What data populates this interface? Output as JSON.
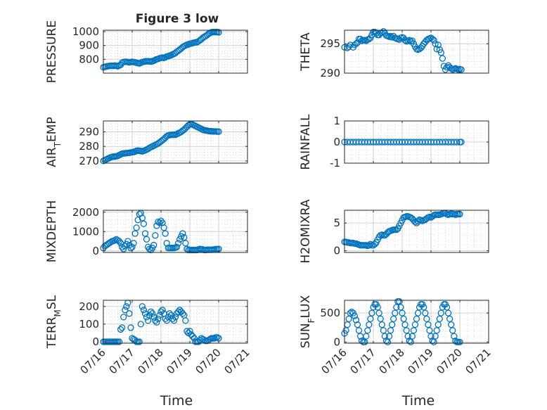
{
  "figure": {
    "title": "Figure 3 low",
    "xlabel": "Time"
  },
  "x_ticks": [
    "07/16",
    "07/17",
    "07/18",
    "07/19",
    "07/20",
    "07/21"
  ],
  "colors": {
    "marker": "#0072BD",
    "axis": "#262626",
    "grid": "#d0d0d0"
  },
  "chart_data": [
    {
      "type": "scatter",
      "ylabel": "PRESSURE",
      "ylabel_sub": "",
      "ylim": [
        700,
        1010
      ],
      "yticks": [
        800,
        900,
        1000
      ],
      "x": [
        0,
        0.05,
        0.1,
        0.15,
        0.2,
        0.25,
        0.3,
        0.35,
        0.4,
        0.45,
        0.5,
        0.55,
        0.6,
        0.65,
        0.7,
        0.75,
        0.8,
        0.85,
        0.9,
        0.95,
        1.0,
        1.05,
        1.1,
        1.15,
        1.2,
        1.25,
        1.3,
        1.35,
        1.4,
        1.45,
        1.5,
        1.55,
        1.6,
        1.65,
        1.7,
        1.75,
        1.8,
        1.85,
        1.9,
        1.95,
        2.0,
        2.05,
        2.1,
        2.15,
        2.2,
        2.25,
        2.3,
        2.35,
        2.4,
        2.45,
        2.5,
        2.55,
        2.6,
        2.65,
        2.7,
        2.75,
        2.8,
        2.85,
        2.9,
        2.95,
        3.0,
        3.05,
        3.1,
        3.15,
        3.2,
        3.25,
        3.3,
        3.35,
        3.4,
        3.45,
        3.5,
        3.55,
        3.6,
        3.65,
        3.7,
        3.75,
        3.8,
        3.85,
        3.9,
        3.95,
        4.0
      ],
      "y": [
        742,
        745,
        748,
        750,
        752,
        753,
        753,
        752,
        755,
        752,
        750,
        755,
        760,
        775,
        780,
        782,
        782,
        780,
        778,
        780,
        782,
        780,
        778,
        775,
        772,
        770,
        775,
        780,
        782,
        785,
        786,
        785,
        786,
        784,
        786,
        790,
        795,
        800,
        803,
        808,
        810,
        812,
        810,
        814,
        820,
        823,
        826,
        830,
        835,
        840,
        845,
        855,
        862,
        870,
        878,
        888,
        895,
        900,
        905,
        908,
        912,
        914,
        918,
        920,
        922,
        924,
        930,
        938,
        945,
        955,
        962,
        968,
        975,
        985,
        990,
        995,
        997,
        997,
        997,
        997,
        995
      ]
    },
    {
      "type": "scatter",
      "ylabel": "THETA",
      "ylabel_sub": "",
      "ylim": [
        290,
        297.3
      ],
      "yticks": [
        290,
        295
      ],
      "x": [
        0,
        0.1,
        0.15,
        0.2,
        0.3,
        0.35,
        0.4,
        0.45,
        0.5,
        0.55,
        0.6,
        0.65,
        0.7,
        0.75,
        0.8,
        0.85,
        0.9,
        0.95,
        1.0,
        1.05,
        1.1,
        1.15,
        1.2,
        1.25,
        1.3,
        1.35,
        1.4,
        1.45,
        1.5,
        1.55,
        1.6,
        1.65,
        1.7,
        1.75,
        1.8,
        1.85,
        1.9,
        1.95,
        2.0,
        2.05,
        2.1,
        2.15,
        2.2,
        2.25,
        2.3,
        2.35,
        2.4,
        2.45,
        2.5,
        2.55,
        2.6,
        2.65,
        2.7,
        2.75,
        2.8,
        2.85,
        2.9,
        2.95,
        3.0,
        3.05,
        3.1,
        3.15,
        3.2,
        3.25,
        3.3,
        3.35,
        3.4,
        3.45,
        3.5,
        3.55,
        3.6,
        3.65,
        3.7,
        3.75,
        3.8,
        3.85,
        3.9,
        3.95,
        4.0,
        4.05
      ],
      "y": [
        294.4,
        294.3,
        294.5,
        294.8,
        294.4,
        294.8,
        295.0,
        295.2,
        295.8,
        295.8,
        295.5,
        295.6,
        295.6,
        295.5,
        295.7,
        295.8,
        296.0,
        296.5,
        297.0,
        297.0,
        296.8,
        296.5,
        296.5,
        296.8,
        296.9,
        297.1,
        296.8,
        296.4,
        296.3,
        296.2,
        296.3,
        296.1,
        296.3,
        296.0,
        295.9,
        295.8,
        295.7,
        296.0,
        296.1,
        296.0,
        295.6,
        295.4,
        295.5,
        295.6,
        295.4,
        295.5,
        295.0,
        294.5,
        294.1,
        294.0,
        294.1,
        294.3,
        294.6,
        295.0,
        295.3,
        295.6,
        295.8,
        295.9,
        296.0,
        295.8,
        295.6,
        295.0,
        294.1,
        294.8,
        294.0,
        293.5,
        292.5,
        291.2,
        290.6,
        291.0,
        291.3,
        291.0,
        290.8,
        290.6,
        290.7,
        290.8,
        290.7,
        290.6,
        290.7,
        290.6
      ]
    },
    {
      "type": "scatter",
      "ylabel": "AIR",
      "ylabel_sub": "T",
      "ylabel_rest": "EMP",
      "ylim": [
        268.5,
        297.5
      ],
      "yticks": [
        270,
        280,
        290
      ],
      "x": [
        0,
        0.05,
        0.1,
        0.15,
        0.2,
        0.25,
        0.3,
        0.35,
        0.4,
        0.45,
        0.5,
        0.55,
        0.6,
        0.65,
        0.7,
        0.75,
        0.8,
        0.85,
        0.9,
        0.95,
        1.0,
        1.05,
        1.1,
        1.15,
        1.2,
        1.25,
        1.3,
        1.35,
        1.4,
        1.45,
        1.5,
        1.55,
        1.6,
        1.65,
        1.7,
        1.75,
        1.8,
        1.85,
        1.9,
        1.95,
        2.0,
        2.05,
        2.1,
        2.15,
        2.2,
        2.25,
        2.3,
        2.35,
        2.4,
        2.45,
        2.5,
        2.55,
        2.6,
        2.65,
        2.7,
        2.75,
        2.8,
        2.85,
        2.9,
        2.95,
        3.0,
        3.05,
        3.1,
        3.15,
        3.2,
        3.25,
        3.3,
        3.35,
        3.4,
        3.45,
        3.5,
        3.55,
        3.6,
        3.65,
        3.7,
        3.75,
        3.8,
        3.85,
        3.9,
        3.95,
        4.0
      ],
      "y": [
        270,
        270.5,
        271,
        271.5,
        272,
        272.5,
        272.8,
        273,
        273,
        273.2,
        273.5,
        274,
        274.5,
        275,
        275.2,
        275.3,
        275.4,
        275.5,
        275.6,
        275.8,
        276,
        276.2,
        276.5,
        277,
        277.2,
        277,
        276.8,
        276.6,
        277,
        277.3,
        277.8,
        278.3,
        279,
        279.5,
        280,
        280.5,
        281,
        281.5,
        282,
        282.8,
        283.5,
        284.3,
        285,
        286,
        287,
        287.6,
        287.8,
        287.9,
        288,
        288,
        288.1,
        288.5,
        289,
        289.5,
        290,
        290.8,
        291.5,
        292.5,
        293.5,
        294.5,
        295.2,
        295.5,
        295.0,
        294.5,
        294.0,
        293.5,
        293.0,
        292.5,
        292.0,
        291.5,
        291.2,
        291,
        290.8,
        290.6,
        290.5,
        290.4,
        290.3,
        290.3,
        290.3,
        290.2,
        290.2
      ]
    },
    {
      "type": "scatter",
      "ylabel": "RAINFALL",
      "ylabel_sub": "",
      "ylim": [
        -1,
        1
      ],
      "yticks": [
        -1,
        0,
        1
      ],
      "x": [
        0,
        0.1,
        0.2,
        0.3,
        0.4,
        0.5,
        0.6,
        0.7,
        0.8,
        0.9,
        1.0,
        1.1,
        1.2,
        1.3,
        1.4,
        1.5,
        1.6,
        1.7,
        1.8,
        1.9,
        2.0,
        2.1,
        2.2,
        2.3,
        2.4,
        2.5,
        2.6,
        2.7,
        2.8,
        2.9,
        3.0,
        3.1,
        3.2,
        3.3,
        3.4,
        3.5,
        3.6,
        3.7,
        3.8,
        3.9,
        4.0,
        4.05
      ],
      "y": [
        0,
        0,
        0,
        0,
        0,
        0,
        0,
        0,
        0,
        0,
        0,
        0,
        0,
        0,
        0,
        0,
        0,
        0,
        0,
        0,
        0,
        0,
        0,
        0,
        0,
        0,
        0,
        0,
        0,
        0,
        0,
        0,
        0,
        0,
        0,
        0,
        0,
        0,
        0,
        0,
        0,
        0
      ]
    },
    {
      "type": "scatter",
      "ylabel": "MIXDEPTH",
      "ylabel_sub": "",
      "ylim": [
        -80,
        2100
      ],
      "yticks": [
        0,
        1000,
        2000
      ],
      "x": [
        0,
        0.05,
        0.1,
        0.15,
        0.2,
        0.25,
        0.3,
        0.35,
        0.4,
        0.45,
        0.5,
        0.55,
        0.6,
        0.65,
        0.7,
        0.75,
        0.8,
        0.85,
        0.9,
        0.95,
        1.0,
        1.05,
        1.1,
        1.15,
        1.2,
        1.25,
        1.3,
        1.35,
        1.4,
        1.45,
        1.5,
        1.55,
        1.6,
        1.65,
        1.7,
        1.75,
        1.8,
        1.85,
        1.9,
        1.95,
        2.0,
        2.05,
        2.1,
        2.15,
        2.2,
        2.25,
        2.3,
        2.35,
        2.4,
        2.45,
        2.5,
        2.55,
        2.6,
        2.65,
        2.7,
        2.75,
        2.8,
        2.85,
        2.9,
        2.95,
        3.0,
        3.05,
        3.1,
        3.15,
        3.2,
        3.25,
        3.3,
        3.35,
        3.4,
        3.45,
        3.5,
        3.55,
        3.6,
        3.65,
        3.7,
        3.75,
        3.8,
        3.85,
        3.9,
        3.95,
        4.0
      ],
      "y": [
        150,
        250,
        300,
        350,
        400,
        450,
        500,
        520,
        550,
        600,
        550,
        500,
        400,
        200,
        100,
        250,
        350,
        500,
        300,
        150,
        200,
        400,
        900,
        1200,
        1600,
        1900,
        1950,
        1700,
        1400,
        900,
        600,
        200,
        100,
        50,
        150,
        300,
        800,
        1300,
        1500,
        1450,
        1550,
        1450,
        1200,
        900,
        400,
        150,
        150,
        150,
        150,
        150,
        180,
        200,
        400,
        600,
        750,
        900,
        700,
        400,
        100,
        50,
        50,
        50,
        50,
        50,
        50,
        50,
        80,
        100,
        80,
        80,
        50,
        50,
        60,
        60,
        60,
        60,
        70,
        80,
        90,
        90,
        100
      ]
    },
    {
      "type": "scatter",
      "ylabel": "H2OMIXRA",
      "ylabel_sub": "",
      "ylim": [
        -0.3,
        7.3
      ],
      "yticks": [
        0,
        5
      ],
      "x": [
        0,
        0.05,
        0.1,
        0.15,
        0.2,
        0.25,
        0.3,
        0.35,
        0.4,
        0.45,
        0.5,
        0.55,
        0.6,
        0.65,
        0.7,
        0.75,
        0.8,
        0.85,
        0.9,
        0.95,
        1.0,
        1.05,
        1.1,
        1.15,
        1.2,
        1.25,
        1.3,
        1.35,
        1.4,
        1.45,
        1.5,
        1.55,
        1.6,
        1.65,
        1.7,
        1.75,
        1.8,
        1.85,
        1.9,
        1.95,
        2.0,
        2.05,
        2.1,
        2.15,
        2.2,
        2.25,
        2.3,
        2.35,
        2.4,
        2.45,
        2.5,
        2.55,
        2.6,
        2.65,
        2.7,
        2.75,
        2.8,
        2.85,
        2.9,
        2.95,
        3.0,
        3.05,
        3.1,
        3.15,
        3.2,
        3.25,
        3.3,
        3.35,
        3.4,
        3.45,
        3.5,
        3.55,
        3.6,
        3.65,
        3.7,
        3.75,
        3.8,
        3.85,
        3.9,
        3.95,
        4.0
      ],
      "y": [
        1.6,
        1.6,
        1.5,
        1.5,
        1.4,
        1.4,
        1.4,
        1.3,
        1.3,
        1.2,
        1.1,
        1.0,
        1.0,
        1.0,
        1.0,
        1.0,
        0.9,
        1.0,
        1.2,
        1.0,
        1.0,
        1.2,
        1.5,
        2.0,
        2.5,
        2.8,
        2.9,
        2.8,
        2.8,
        3.0,
        3.3,
        3.5,
        3.6,
        3.7,
        3.8,
        3.8,
        3.8,
        4.0,
        4.5,
        5.0,
        5.5,
        6.0,
        6.1,
        6.2,
        6.2,
        6.1,
        6.0,
        5.8,
        5.5,
        5.2,
        5.0,
        5.3,
        5.6,
        5.5,
        5.4,
        5.5,
        5.6,
        5.8,
        6.0,
        6.1,
        6.0,
        6.2,
        6.4,
        6.5,
        6.5,
        6.5,
        6.5,
        6.6,
        6.7,
        6.8,
        6.8,
        6.6,
        6.5,
        6.6,
        6.7,
        6.6,
        6.6,
        6.5,
        6.6,
        6.6,
        6.6
      ]
    },
    {
      "type": "scatter",
      "ylabel": "TERR",
      "ylabel_sub": "M",
      "ylabel_rest": "SL",
      "ylim": [
        -8,
        235
      ],
      "yticks": [
        0,
        100,
        200
      ],
      "x": [
        0,
        0.05,
        0.1,
        0.15,
        0.2,
        0.25,
        0.3,
        0.35,
        0.4,
        0.45,
        0.5,
        0.55,
        0.6,
        0.65,
        0.7,
        0.75,
        0.8,
        0.85,
        0.9,
        0.95,
        1.0,
        1.05,
        1.1,
        1.15,
        1.2,
        1.25,
        1.3,
        1.35,
        1.4,
        1.45,
        1.5,
        1.55,
        1.6,
        1.65,
        1.7,
        1.75,
        1.8,
        1.85,
        1.9,
        1.95,
        2.0,
        2.05,
        2.1,
        2.15,
        2.2,
        2.25,
        2.3,
        2.35,
        2.4,
        2.45,
        2.5,
        2.55,
        2.6,
        2.65,
        2.7,
        2.75,
        2.8,
        2.85,
        2.9,
        2.95,
        3.0,
        3.05,
        3.1,
        3.15,
        3.2,
        3.25,
        3.3,
        3.35,
        3.4,
        3.45,
        3.5,
        3.55,
        3.6,
        3.65,
        3.7,
        3.75,
        3.8,
        3.85,
        3.9,
        3.95,
        4.0
      ],
      "y": [
        0,
        0,
        0,
        0,
        0,
        0,
        0,
        0,
        0,
        0,
        0,
        0,
        70,
        80,
        140,
        180,
        200,
        220,
        160,
        80,
        20,
        15,
        10,
        0,
        0,
        0,
        100,
        200,
        180,
        160,
        140,
        120,
        150,
        170,
        160,
        140,
        120,
        110,
        130,
        150,
        170,
        180,
        160,
        130,
        120,
        140,
        160,
        150,
        130,
        120,
        140,
        160,
        170,
        180,
        170,
        160,
        150,
        120,
        60,
        50,
        60,
        40,
        30,
        20,
        0,
        0,
        0,
        10,
        20,
        15,
        10,
        5,
        5,
        10,
        15,
        20,
        20,
        20,
        25,
        25,
        20
      ]
    },
    {
      "type": "scatter",
      "ylabel": "SUN",
      "ylabel_sub": "F",
      "ylabel_rest": "LUX",
      "ylim": [
        -20,
        720
      ],
      "yticks": [
        0,
        500
      ],
      "x": [
        0,
        0.05,
        0.1,
        0.15,
        0.2,
        0.25,
        0.3,
        0.35,
        0.4,
        0.45,
        0.5,
        0.55,
        0.6,
        0.65,
        0.7,
        0.75,
        0.8,
        0.85,
        0.9,
        0.95,
        1.0,
        1.05,
        1.1,
        1.15,
        1.2,
        1.25,
        1.3,
        1.35,
        1.4,
        1.45,
        1.5,
        1.55,
        1.6,
        1.65,
        1.7,
        1.75,
        1.8,
        1.85,
        1.9,
        1.95,
        2.0,
        2.05,
        2.1,
        2.15,
        2.2,
        2.25,
        2.3,
        2.35,
        2.4,
        2.45,
        2.5,
        2.55,
        2.6,
        2.65,
        2.7,
        2.75,
        2.8,
        2.85,
        2.9,
        2.95,
        3.0,
        3.05,
        3.1,
        3.15,
        3.2,
        3.25,
        3.3,
        3.35,
        3.4,
        3.45,
        3.5,
        3.55,
        3.6,
        3.65,
        3.7,
        3.75,
        3.8,
        3.85,
        3.9,
        3.95,
        4.0
      ],
      "y": [
        150,
        200,
        300,
        400,
        500,
        520,
        500,
        450,
        380,
        300,
        200,
        100,
        20,
        0,
        0,
        100,
        200,
        300,
        400,
        500,
        600,
        650,
        650,
        600,
        500,
        400,
        300,
        200,
        100,
        20,
        0,
        100,
        200,
        300,
        400,
        500,
        600,
        700,
        700,
        600,
        500,
        400,
        300,
        200,
        100,
        20,
        0,
        100,
        200,
        300,
        400,
        500,
        600,
        650,
        650,
        600,
        500,
        400,
        300,
        200,
        100,
        20,
        0,
        100,
        200,
        300,
        400,
        500,
        600,
        650,
        650,
        600,
        500,
        400,
        300,
        200,
        100,
        20,
        0,
        0,
        0
      ]
    }
  ]
}
